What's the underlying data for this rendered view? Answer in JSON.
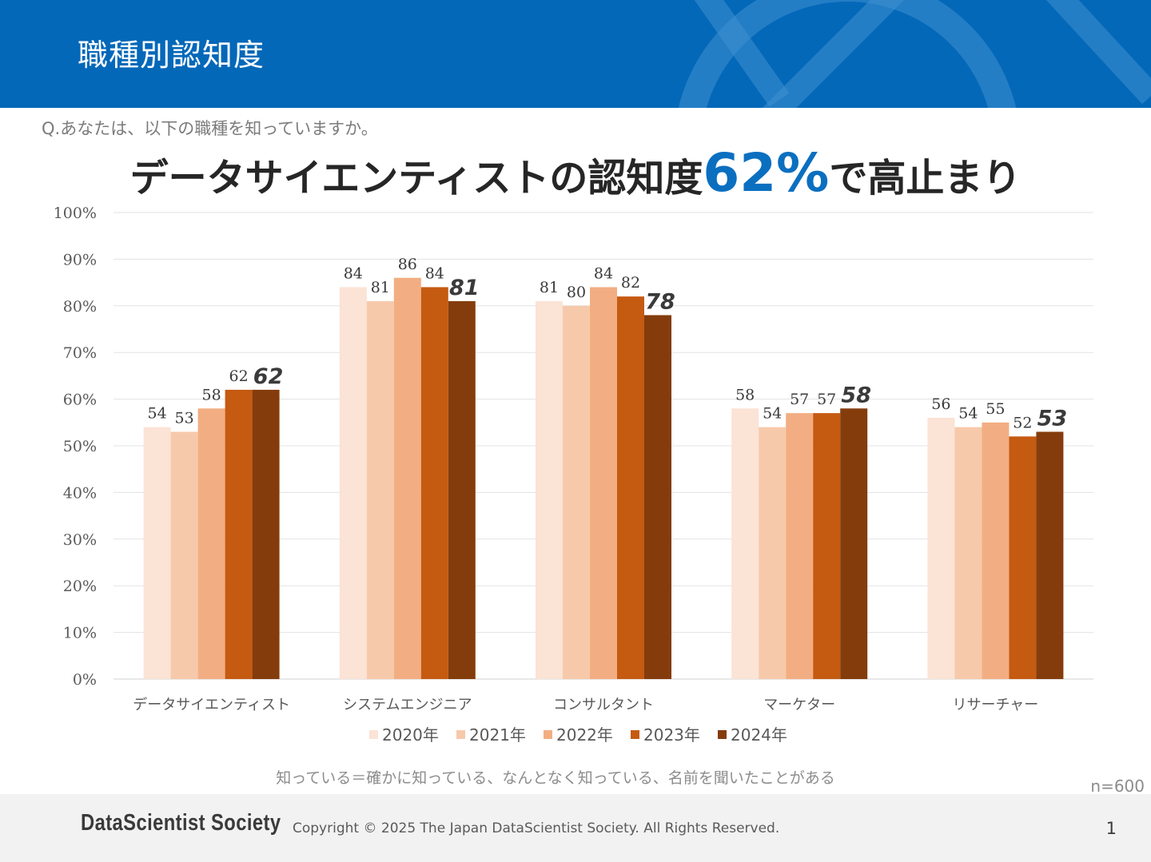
{
  "header": {
    "title": "職種別認知度"
  },
  "question": "Q.あなたは、以下の職種を知っていますか。",
  "headline": {
    "prefix": "データサイエンティストの認知度",
    "highlight": "62%",
    "suffix": "で高止まり"
  },
  "chart_data": {
    "type": "bar",
    "categories": [
      "データサイエンティスト",
      "システムエンジニア",
      "コンサルタント",
      "マーケター",
      "リサーチャー"
    ],
    "series": [
      {
        "name": "2020年",
        "values": [
          54,
          84,
          81,
          58,
          56
        ],
        "color": "#fbe3d6"
      },
      {
        "name": "2021年",
        "values": [
          53,
          81,
          80,
          54,
          54
        ],
        "color": "#f7c9ab"
      },
      {
        "name": "2022年",
        "values": [
          58,
          86,
          84,
          57,
          55
        ],
        "color": "#f2ae82"
      },
      {
        "name": "2023年",
        "values": [
          62,
          84,
          82,
          57,
          52
        ],
        "color": "#c55a11"
      },
      {
        "name": "2024年",
        "values": [
          62,
          81,
          78,
          58,
          53
        ],
        "color": "#843c0c"
      }
    ],
    "yticks": [
      "0%",
      "10%",
      "20%",
      "30%",
      "40%",
      "50%",
      "60%",
      "70%",
      "80%",
      "90%",
      "100%"
    ],
    "ylim": [
      0,
      100
    ],
    "grid": true,
    "legend_position": "bottom",
    "highlight_series": "2024年"
  },
  "footnote": "知っている＝確かに知っている、なんとなく知っている、名前を聞いたことがある",
  "sample_size": "n=600",
  "footer": {
    "logo": "DataScientist Society",
    "copyright": "Copyright © 2025 The Japan DataScientist Society. All Rights Reserved.",
    "page_number": "1"
  }
}
